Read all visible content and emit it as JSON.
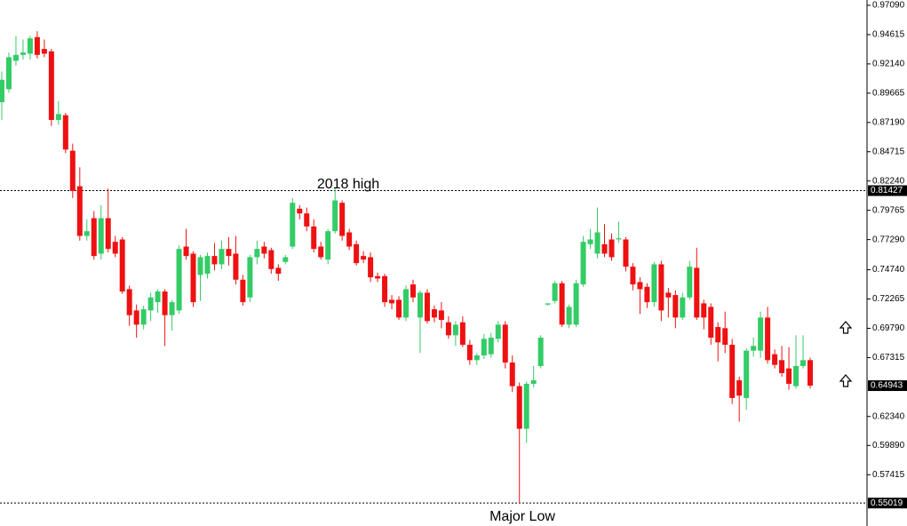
{
  "chart_data": {
    "type": "candlestick",
    "up_color": "#33cc66",
    "down_color": "#ee1111",
    "ylim": [
      0.5308,
      0.9754
    ],
    "yticks": [
      {
        "value": 0.9709,
        "label": "0.97090"
      },
      {
        "value": 0.94615,
        "label": "0.94615"
      },
      {
        "value": 0.9214,
        "label": "0.92140"
      },
      {
        "value": 0.89665,
        "label": "0.89665"
      },
      {
        "value": 0.8719,
        "label": "0.87190"
      },
      {
        "value": 0.84715,
        "label": "0.84715"
      },
      {
        "value": 0.8224,
        "label": "0.82240"
      },
      {
        "value": 0.79765,
        "label": "0.79765"
      },
      {
        "value": 0.7729,
        "label": "0.77290"
      },
      {
        "value": 0.7474,
        "label": "0.74740"
      },
      {
        "value": 0.72265,
        "label": "0.72265"
      },
      {
        "value": 0.6979,
        "label": "0.69790"
      },
      {
        "value": 0.67315,
        "label": "0.67315"
      },
      {
        "value": 0.6234,
        "label": "0.62340"
      },
      {
        "value": 0.5989,
        "label": "0.59890"
      },
      {
        "value": 0.57415,
        "label": "0.57415"
      }
    ],
    "levels": [
      {
        "value": 0.81427,
        "label": "0.81427",
        "line": true
      },
      {
        "value": 0.64943,
        "label": "0.64943",
        "line": false
      },
      {
        "value": 0.55019,
        "label": "0.55019",
        "line": true
      }
    ],
    "annotations": [
      "2018 high",
      "Major Low"
    ],
    "open": [
      0.889,
      0.9,
      0.924,
      0.929,
      0.93,
      0.944,
      0.934,
      0.932,
      0.874,
      0.878,
      0.848,
      0.818,
      0.776,
      0.791,
      0.761,
      0.791,
      0.771,
      0.773,
      0.731,
      0.713,
      0.701,
      0.713,
      0.72,
      0.729,
      0.709,
      0.713,
      0.767,
      0.761,
      0.743,
      0.744,
      0.759,
      0.752,
      0.765,
      0.761,
      0.739,
      0.724,
      0.758,
      0.767,
      0.764,
      0.749,
      0.754,
      0.767,
      0.799,
      0.795,
      0.784,
      0.767,
      0.756,
      0.78,
      0.804,
      0.779,
      0.769,
      0.759,
      0.758,
      0.742,
      0.742,
      0.722,
      0.722,
      0.707,
      0.735,
      0.707,
      0.728,
      0.714,
      0.713,
      0.703,
      0.692,
      0.703,
      0.684,
      0.671,
      0.675,
      0.676,
      0.689,
      0.701,
      0.669,
      0.649,
      0.613,
      0.651,
      0.666,
      0.718,
      0.721,
      0.736,
      0.701,
      0.701,
      0.735,
      0.769,
      0.761,
      0.769,
      0.773,
      0.773,
      0.773,
      0.75,
      0.737,
      0.733,
      0.72,
      0.752,
      0.728,
      0.726,
      0.707,
      0.724,
      0.749,
      0.719,
      0.716,
      0.699,
      0.698,
      0.684,
      0.654,
      0.639,
      0.679,
      0.679,
      0.707,
      0.676,
      0.671,
      0.664,
      0.649,
      0.666,
      0.671
    ],
    "high": [
      0.915,
      0.931,
      0.945,
      0.942,
      0.945,
      0.949,
      0.942,
      0.934,
      0.89,
      0.88,
      0.854,
      0.834,
      0.79,
      0.797,
      0.802,
      0.816,
      0.776,
      0.775,
      0.734,
      0.718,
      0.717,
      0.728,
      0.731,
      0.731,
      0.722,
      0.768,
      0.782,
      0.763,
      0.76,
      0.762,
      0.77,
      0.772,
      0.775,
      0.776,
      0.743,
      0.76,
      0.772,
      0.771,
      0.766,
      0.752,
      0.76,
      0.808,
      0.802,
      0.8,
      0.79,
      0.771,
      0.782,
      0.817,
      0.806,
      0.782,
      0.772,
      0.763,
      0.762,
      0.745,
      0.744,
      0.726,
      0.725,
      0.734,
      0.739,
      0.73,
      0.731,
      0.717,
      0.72,
      0.708,
      0.704,
      0.708,
      0.688,
      0.677,
      0.693,
      0.694,
      0.704,
      0.704,
      0.675,
      0.652,
      0.653,
      0.666,
      0.692,
      0.719,
      0.738,
      0.738,
      0.718,
      0.739,
      0.776,
      0.782,
      0.8,
      0.786,
      0.778,
      0.788,
      0.775,
      0.753,
      0.741,
      0.736,
      0.754,
      0.755,
      0.732,
      0.73,
      0.728,
      0.755,
      0.766,
      0.722,
      0.719,
      0.703,
      0.712,
      0.689,
      0.657,
      0.681,
      0.69,
      0.712,
      0.716,
      0.68,
      0.683,
      0.682,
      0.692,
      0.692,
      0.673
    ],
    "low": [
      0.874,
      0.897,
      0.92,
      0.925,
      0.925,
      0.926,
      0.927,
      0.869,
      0.87,
      0.846,
      0.808,
      0.772,
      0.772,
      0.756,
      0.756,
      0.762,
      0.758,
      0.727,
      0.7,
      0.69,
      0.697,
      0.704,
      0.711,
      0.683,
      0.696,
      0.71,
      0.756,
      0.716,
      0.721,
      0.74,
      0.747,
      0.748,
      0.751,
      0.735,
      0.717,
      0.72,
      0.752,
      0.757,
      0.744,
      0.738,
      0.752,
      0.765,
      0.79,
      0.78,
      0.762,
      0.756,
      0.752,
      0.778,
      0.772,
      0.764,
      0.751,
      0.753,
      0.737,
      0.737,
      0.716,
      0.714,
      0.705,
      0.704,
      0.72,
      0.677,
      0.702,
      0.703,
      0.698,
      0.689,
      0.683,
      0.682,
      0.667,
      0.667,
      0.672,
      0.673,
      0.686,
      0.664,
      0.644,
      0.5502,
      0.601,
      0.648,
      0.664,
      0.717,
      0.719,
      0.699,
      0.698,
      0.699,
      0.733,
      0.765,
      0.757,
      0.758,
      0.755,
      0.77,
      0.746,
      0.73,
      0.71,
      0.715,
      0.716,
      0.704,
      0.707,
      0.698,
      0.705,
      0.722,
      0.705,
      0.697,
      0.684,
      0.67,
      0.677,
      0.634,
      0.619,
      0.629,
      0.674,
      0.673,
      0.668,
      0.664,
      0.657,
      0.646,
      0.647,
      0.664,
      0.647
    ],
    "close": [
      0.908,
      0.927,
      0.929,
      0.931,
      0.943,
      0.929,
      0.93,
      0.874,
      0.879,
      0.849,
      0.814,
      0.776,
      0.78,
      0.759,
      0.791,
      0.765,
      0.761,
      0.729,
      0.709,
      0.701,
      0.714,
      0.724,
      0.729,
      0.709,
      0.72,
      0.765,
      0.759,
      0.72,
      0.758,
      0.759,
      0.752,
      0.765,
      0.759,
      0.739,
      0.72,
      0.758,
      0.765,
      0.761,
      0.748,
      0.744,
      0.758,
      0.804,
      0.795,
      0.784,
      0.765,
      0.758,
      0.78,
      0.806,
      0.776,
      0.767,
      0.753,
      0.756,
      0.741,
      0.74,
      0.72,
      0.719,
      0.707,
      0.731,
      0.724,
      0.728,
      0.704,
      0.707,
      0.705,
      0.692,
      0.701,
      0.684,
      0.671,
      0.675,
      0.689,
      0.69,
      0.701,
      0.669,
      0.649,
      0.613,
      0.651,
      0.654,
      0.69,
      0.719,
      0.736,
      0.701,
      0.716,
      0.736,
      0.771,
      0.773,
      0.779,
      0.761,
      0.758,
      0.774,
      0.75,
      0.735,
      0.731,
      0.72,
      0.752,
      0.713,
      0.724,
      0.707,
      0.724,
      0.75,
      0.707,
      0.707,
      0.69,
      0.686,
      0.684,
      0.639,
      0.641,
      0.679,
      0.683,
      0.707,
      0.671,
      0.667,
      0.66,
      0.651,
      0.666,
      0.671,
      0.6494
    ]
  }
}
